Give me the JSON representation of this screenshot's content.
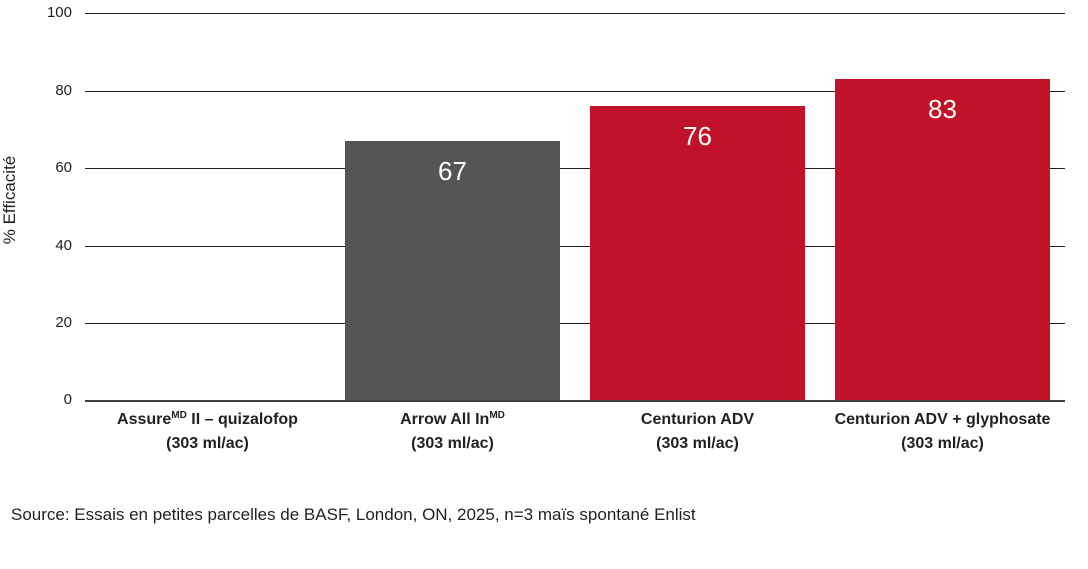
{
  "chart_data": {
    "type": "bar",
    "title": "",
    "xlabel": "",
    "ylabel": "% Efficacité",
    "ylim": [
      0,
      100
    ],
    "y_ticks": [
      100,
      80,
      60,
      40,
      20,
      0
    ],
    "grid": "horizontal",
    "legend": "none",
    "categories": [
      {
        "pre": "Assure",
        "sup": "MD",
        "post": " II – quizalofop",
        "rate": "(303 ml/ac)"
      },
      {
        "pre": "Arrow All In",
        "sup": "MD",
        "post": "",
        "rate": "(303 ml/ac)"
      },
      {
        "pre": "Centurion ADV",
        "sup": "",
        "post": "",
        "rate": "(303 ml/ac)"
      },
      {
        "pre": "Centurion ADV + glyphosate",
        "sup": "",
        "post": "",
        "rate": "(303 ml/ac)"
      }
    ],
    "series": [
      {
        "name": "% Efficacité",
        "values": [
          0,
          67,
          76,
          83
        ],
        "labels": [
          "",
          "67",
          "76",
          "83"
        ],
        "colors": [
          "transparent",
          "#555557",
          "#c01329",
          "#c01329"
        ]
      }
    ],
    "source": "Source: Essais en petites parcelles de BASF, London, ON, 2025, n=3 maïs spontané Enlist"
  },
  "colors": {
    "bar_gray": "#555557",
    "bar_red": "#c01329",
    "gridline": "#231f20",
    "axis_line": "#414042",
    "value_label": "#ffffff",
    "text": "#231f20",
    "background": "#ffffff"
  }
}
